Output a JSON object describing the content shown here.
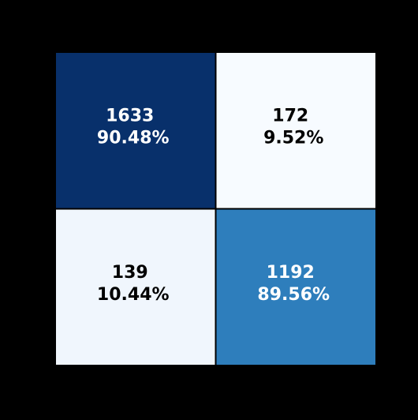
{
  "chart_data": {
    "type": "heatmap",
    "title": "",
    "xlabel": "",
    "ylabel": "",
    "x_ticks": [
      "",
      ""
    ],
    "y_ticks": [
      "",
      ""
    ],
    "cells": [
      [
        {
          "count": "1633",
          "percent": "90.48%",
          "value": 0.9048,
          "color": "#08306b",
          "text_color": "#ffffff"
        },
        {
          "count": "172",
          "percent": "9.52%",
          "value": 0.0952,
          "color": "#f7fbff",
          "text_color": "#000000"
        }
      ],
      [
        {
          "count": "139",
          "percent": "10.44%",
          "value": 0.1044,
          "color": "#f0f6fd",
          "text_color": "#000000"
        },
        {
          "count": "1192",
          "percent": "89.56%",
          "value": 0.8956,
          "color": "#2e7ebc",
          "text_color": "#ffffff"
        }
      ]
    ],
    "colormap": "Blues",
    "grid": false,
    "legend": "none"
  }
}
